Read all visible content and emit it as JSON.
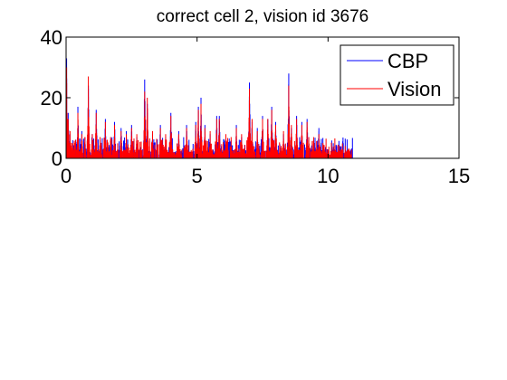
{
  "chart_data": {
    "type": "line",
    "title": "correct cell 2, vision id 3676",
    "xlabel": "",
    "ylabel": "",
    "xlim": [
      0,
      15
    ],
    "ylim": [
      0,
      40
    ],
    "xticks": [
      0,
      5,
      10,
      15
    ],
    "yticks": [
      0,
      20,
      40
    ],
    "grid": false,
    "legend_position": "top-right",
    "series": [
      {
        "name": "CBP",
        "color": "#0000ff",
        "peaks": [
          [
            0.02,
            33
          ],
          [
            0.08,
            15
          ],
          [
            0.15,
            8
          ],
          [
            0.25,
            6
          ],
          [
            0.45,
            17
          ],
          [
            0.6,
            9
          ],
          [
            0.72,
            7
          ],
          [
            0.85,
            24
          ],
          [
            1.0,
            8
          ],
          [
            1.15,
            16
          ],
          [
            1.3,
            6
          ],
          [
            1.5,
            13
          ],
          [
            1.7,
            6
          ],
          [
            1.85,
            12
          ],
          [
            2.1,
            10
          ],
          [
            2.3,
            9
          ],
          [
            2.5,
            11
          ],
          [
            2.7,
            7
          ],
          [
            3.0,
            26
          ],
          [
            3.1,
            18
          ],
          [
            3.3,
            8
          ],
          [
            3.6,
            11
          ],
          [
            3.8,
            7
          ],
          [
            4.0,
            15
          ],
          [
            4.3,
            9
          ],
          [
            4.6,
            11
          ],
          [
            4.95,
            12
          ],
          [
            5.05,
            17
          ],
          [
            5.15,
            20
          ],
          [
            5.3,
            11
          ],
          [
            5.5,
            8
          ],
          [
            5.75,
            14
          ],
          [
            5.85,
            14
          ],
          [
            6.1,
            7
          ],
          [
            6.3,
            6
          ],
          [
            6.5,
            11
          ],
          [
            6.7,
            7
          ],
          [
            7.0,
            25
          ],
          [
            7.1,
            12
          ],
          [
            7.3,
            10
          ],
          [
            7.5,
            14
          ],
          [
            7.7,
            13
          ],
          [
            7.85,
            17
          ],
          [
            8.0,
            12
          ],
          [
            8.3,
            8
          ],
          [
            8.5,
            28
          ],
          [
            8.6,
            10
          ],
          [
            8.8,
            14
          ],
          [
            9.0,
            12
          ],
          [
            9.2,
            13
          ],
          [
            9.45,
            6
          ],
          [
            9.65,
            10
          ],
          [
            9.8,
            4
          ],
          [
            10.2,
            5
          ],
          [
            10.5,
            4
          ],
          [
            10.8,
            3
          ]
        ]
      },
      {
        "name": "Vision",
        "color": "#ff0000",
        "peaks": [
          [
            0.02,
            30
          ],
          [
            0.08,
            13
          ],
          [
            0.15,
            9
          ],
          [
            0.25,
            5
          ],
          [
            0.45,
            15
          ],
          [
            0.6,
            8
          ],
          [
            0.72,
            7
          ],
          [
            0.85,
            27
          ],
          [
            1.0,
            8
          ],
          [
            1.15,
            15
          ],
          [
            1.3,
            7
          ],
          [
            1.5,
            12
          ],
          [
            1.7,
            7
          ],
          [
            1.85,
            11
          ],
          [
            2.1,
            9
          ],
          [
            2.3,
            8
          ],
          [
            2.5,
            10
          ],
          [
            2.7,
            8
          ],
          [
            3.0,
            22
          ],
          [
            3.1,
            20
          ],
          [
            3.3,
            9
          ],
          [
            3.6,
            10
          ],
          [
            3.8,
            8
          ],
          [
            4.0,
            14
          ],
          [
            4.3,
            8
          ],
          [
            4.6,
            10
          ],
          [
            4.95,
            11
          ],
          [
            5.05,
            16
          ],
          [
            5.15,
            18
          ],
          [
            5.3,
            10
          ],
          [
            5.5,
            9
          ],
          [
            5.75,
            13
          ],
          [
            5.85,
            13
          ],
          [
            6.1,
            8
          ],
          [
            6.3,
            7
          ],
          [
            6.5,
            10
          ],
          [
            6.7,
            8
          ],
          [
            7.0,
            23
          ],
          [
            7.1,
            13
          ],
          [
            7.3,
            9
          ],
          [
            7.5,
            13
          ],
          [
            7.7,
            13
          ],
          [
            7.85,
            16
          ],
          [
            8.0,
            11
          ],
          [
            8.3,
            9
          ],
          [
            8.5,
            24
          ],
          [
            8.6,
            11
          ],
          [
            8.8,
            13
          ],
          [
            9.0,
            11
          ],
          [
            9.2,
            12
          ],
          [
            9.45,
            7
          ],
          [
            9.65,
            8
          ],
          [
            9.8,
            4
          ],
          [
            10.2,
            4
          ],
          [
            10.5,
            3
          ],
          [
            10.8,
            3
          ]
        ]
      }
    ]
  }
}
